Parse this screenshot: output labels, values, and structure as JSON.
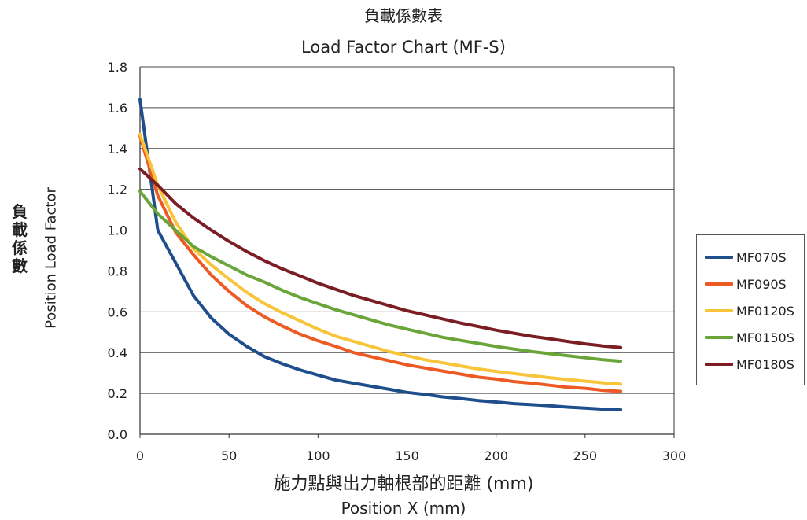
{
  "chart_data": {
    "type": "line",
    "title": "負載係數表",
    "subtitle": "Load Factor Chart (MF-S)",
    "xlabel": "施力點與出力軸根部的距離 (mm)",
    "xlabel_en": "Position X (mm)",
    "ylabel": "負載係數",
    "ylabel_en": "Position Load Factor",
    "xlim": [
      0,
      300
    ],
    "ylim": [
      0,
      1.8
    ],
    "xticks": [
      "0",
      "50",
      "100",
      "150",
      "200",
      "250",
      "300"
    ],
    "yticks": [
      "0.0",
      "0.2",
      "0.4",
      "0.6",
      "0.8",
      "1.0",
      "1.2",
      "1.4",
      "1.6",
      "1.8"
    ],
    "grid": "horizontal",
    "legend_position": "right",
    "x": [
      0,
      10,
      20,
      30,
      40,
      50,
      60,
      70,
      80,
      90,
      100,
      110,
      120,
      130,
      140,
      150,
      160,
      170,
      180,
      190,
      200,
      210,
      220,
      230,
      240,
      250,
      260,
      270
    ],
    "series": [
      {
        "name": "MF070S",
        "color": "#1f4e8c",
        "values": [
          1.64,
          1.0,
          0.84,
          0.68,
          0.57,
          0.49,
          0.43,
          0.38,
          0.345,
          0.315,
          0.29,
          0.265,
          0.25,
          0.235,
          0.22,
          0.205,
          0.195,
          0.183,
          0.175,
          0.165,
          0.158,
          0.15,
          0.145,
          0.14,
          0.133,
          0.128,
          0.123,
          0.12
        ]
      },
      {
        "name": "MF090S",
        "color": "#ee5a24",
        "values": [
          1.46,
          1.17,
          0.99,
          0.88,
          0.78,
          0.7,
          0.63,
          0.575,
          0.53,
          0.49,
          0.458,
          0.43,
          0.4,
          0.38,
          0.36,
          0.34,
          0.325,
          0.31,
          0.295,
          0.28,
          0.27,
          0.258,
          0.25,
          0.24,
          0.23,
          0.225,
          0.215,
          0.21
        ]
      },
      {
        "name": "MF0120S",
        "color": "#f7c43a",
        "values": [
          1.47,
          1.22,
          1.04,
          0.91,
          0.83,
          0.76,
          0.695,
          0.64,
          0.595,
          0.555,
          0.515,
          0.48,
          0.455,
          0.43,
          0.405,
          0.385,
          0.365,
          0.35,
          0.335,
          0.32,
          0.308,
          0.297,
          0.287,
          0.277,
          0.268,
          0.26,
          0.252,
          0.245
        ]
      },
      {
        "name": "MF0150S",
        "color": "#6aa53a",
        "values": [
          1.19,
          1.08,
          1.0,
          0.92,
          0.87,
          0.825,
          0.78,
          0.745,
          0.705,
          0.67,
          0.64,
          0.61,
          0.585,
          0.56,
          0.535,
          0.515,
          0.495,
          0.475,
          0.46,
          0.445,
          0.43,
          0.418,
          0.405,
          0.395,
          0.385,
          0.375,
          0.365,
          0.358
        ]
      },
      {
        "name": "MF0180S",
        "color": "#7a1e24",
        "values": [
          1.3,
          1.22,
          1.13,
          1.06,
          1.0,
          0.945,
          0.895,
          0.85,
          0.81,
          0.775,
          0.74,
          0.71,
          0.68,
          0.655,
          0.63,
          0.605,
          0.585,
          0.565,
          0.545,
          0.528,
          0.51,
          0.495,
          0.48,
          0.468,
          0.455,
          0.443,
          0.433,
          0.425
        ]
      }
    ]
  }
}
